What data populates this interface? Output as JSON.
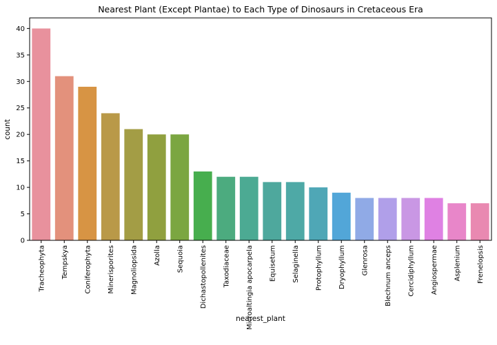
{
  "chart_data": {
    "type": "bar",
    "title": "Nearest Plant (Except Plantae) to Each Type of Dinosaurs in Cretaceous Era",
    "xlabel": "nearest_plant",
    "ylabel": "count",
    "ylim": [
      0,
      42
    ],
    "yticks": [
      0,
      5,
      10,
      15,
      20,
      25,
      30,
      35,
      40
    ],
    "grid": false,
    "legend": "none",
    "categories": [
      "Tracheophyta",
      "Tempskya",
      "Coniferophyta",
      "Minerisporites",
      "Magnoliopsida",
      "Azolla",
      "Sequoia",
      "Dichastopollenites",
      "Taxodiaceae",
      "Microaltingia apocarpela",
      "Equisetum",
      "Selaginella",
      "Protophyllum",
      "Dryophyllum",
      "Glenrosa",
      "Blechnum anceps",
      "Cercidiphyllum",
      "Angiospermae",
      "Asplenium",
      "Frenelopsis"
    ],
    "values": [
      40,
      31,
      29,
      24,
      21,
      20,
      20,
      13,
      12,
      12,
      11,
      11,
      10,
      9,
      8,
      8,
      8,
      8,
      7,
      7
    ],
    "colors": [
      "#e8919d",
      "#e3917c",
      "#d79444",
      "#b99948",
      "#a39d45",
      "#90a03f",
      "#7ba641",
      "#47ae4e",
      "#4cab7f",
      "#4caa93",
      "#4ea89d",
      "#4ea9a6",
      "#4fa7b6",
      "#52a6d8",
      "#90aae6",
      "#b09fe9",
      "#c997e4",
      "#df81e3",
      "#e886c9",
      "#e989b1"
    ]
  }
}
